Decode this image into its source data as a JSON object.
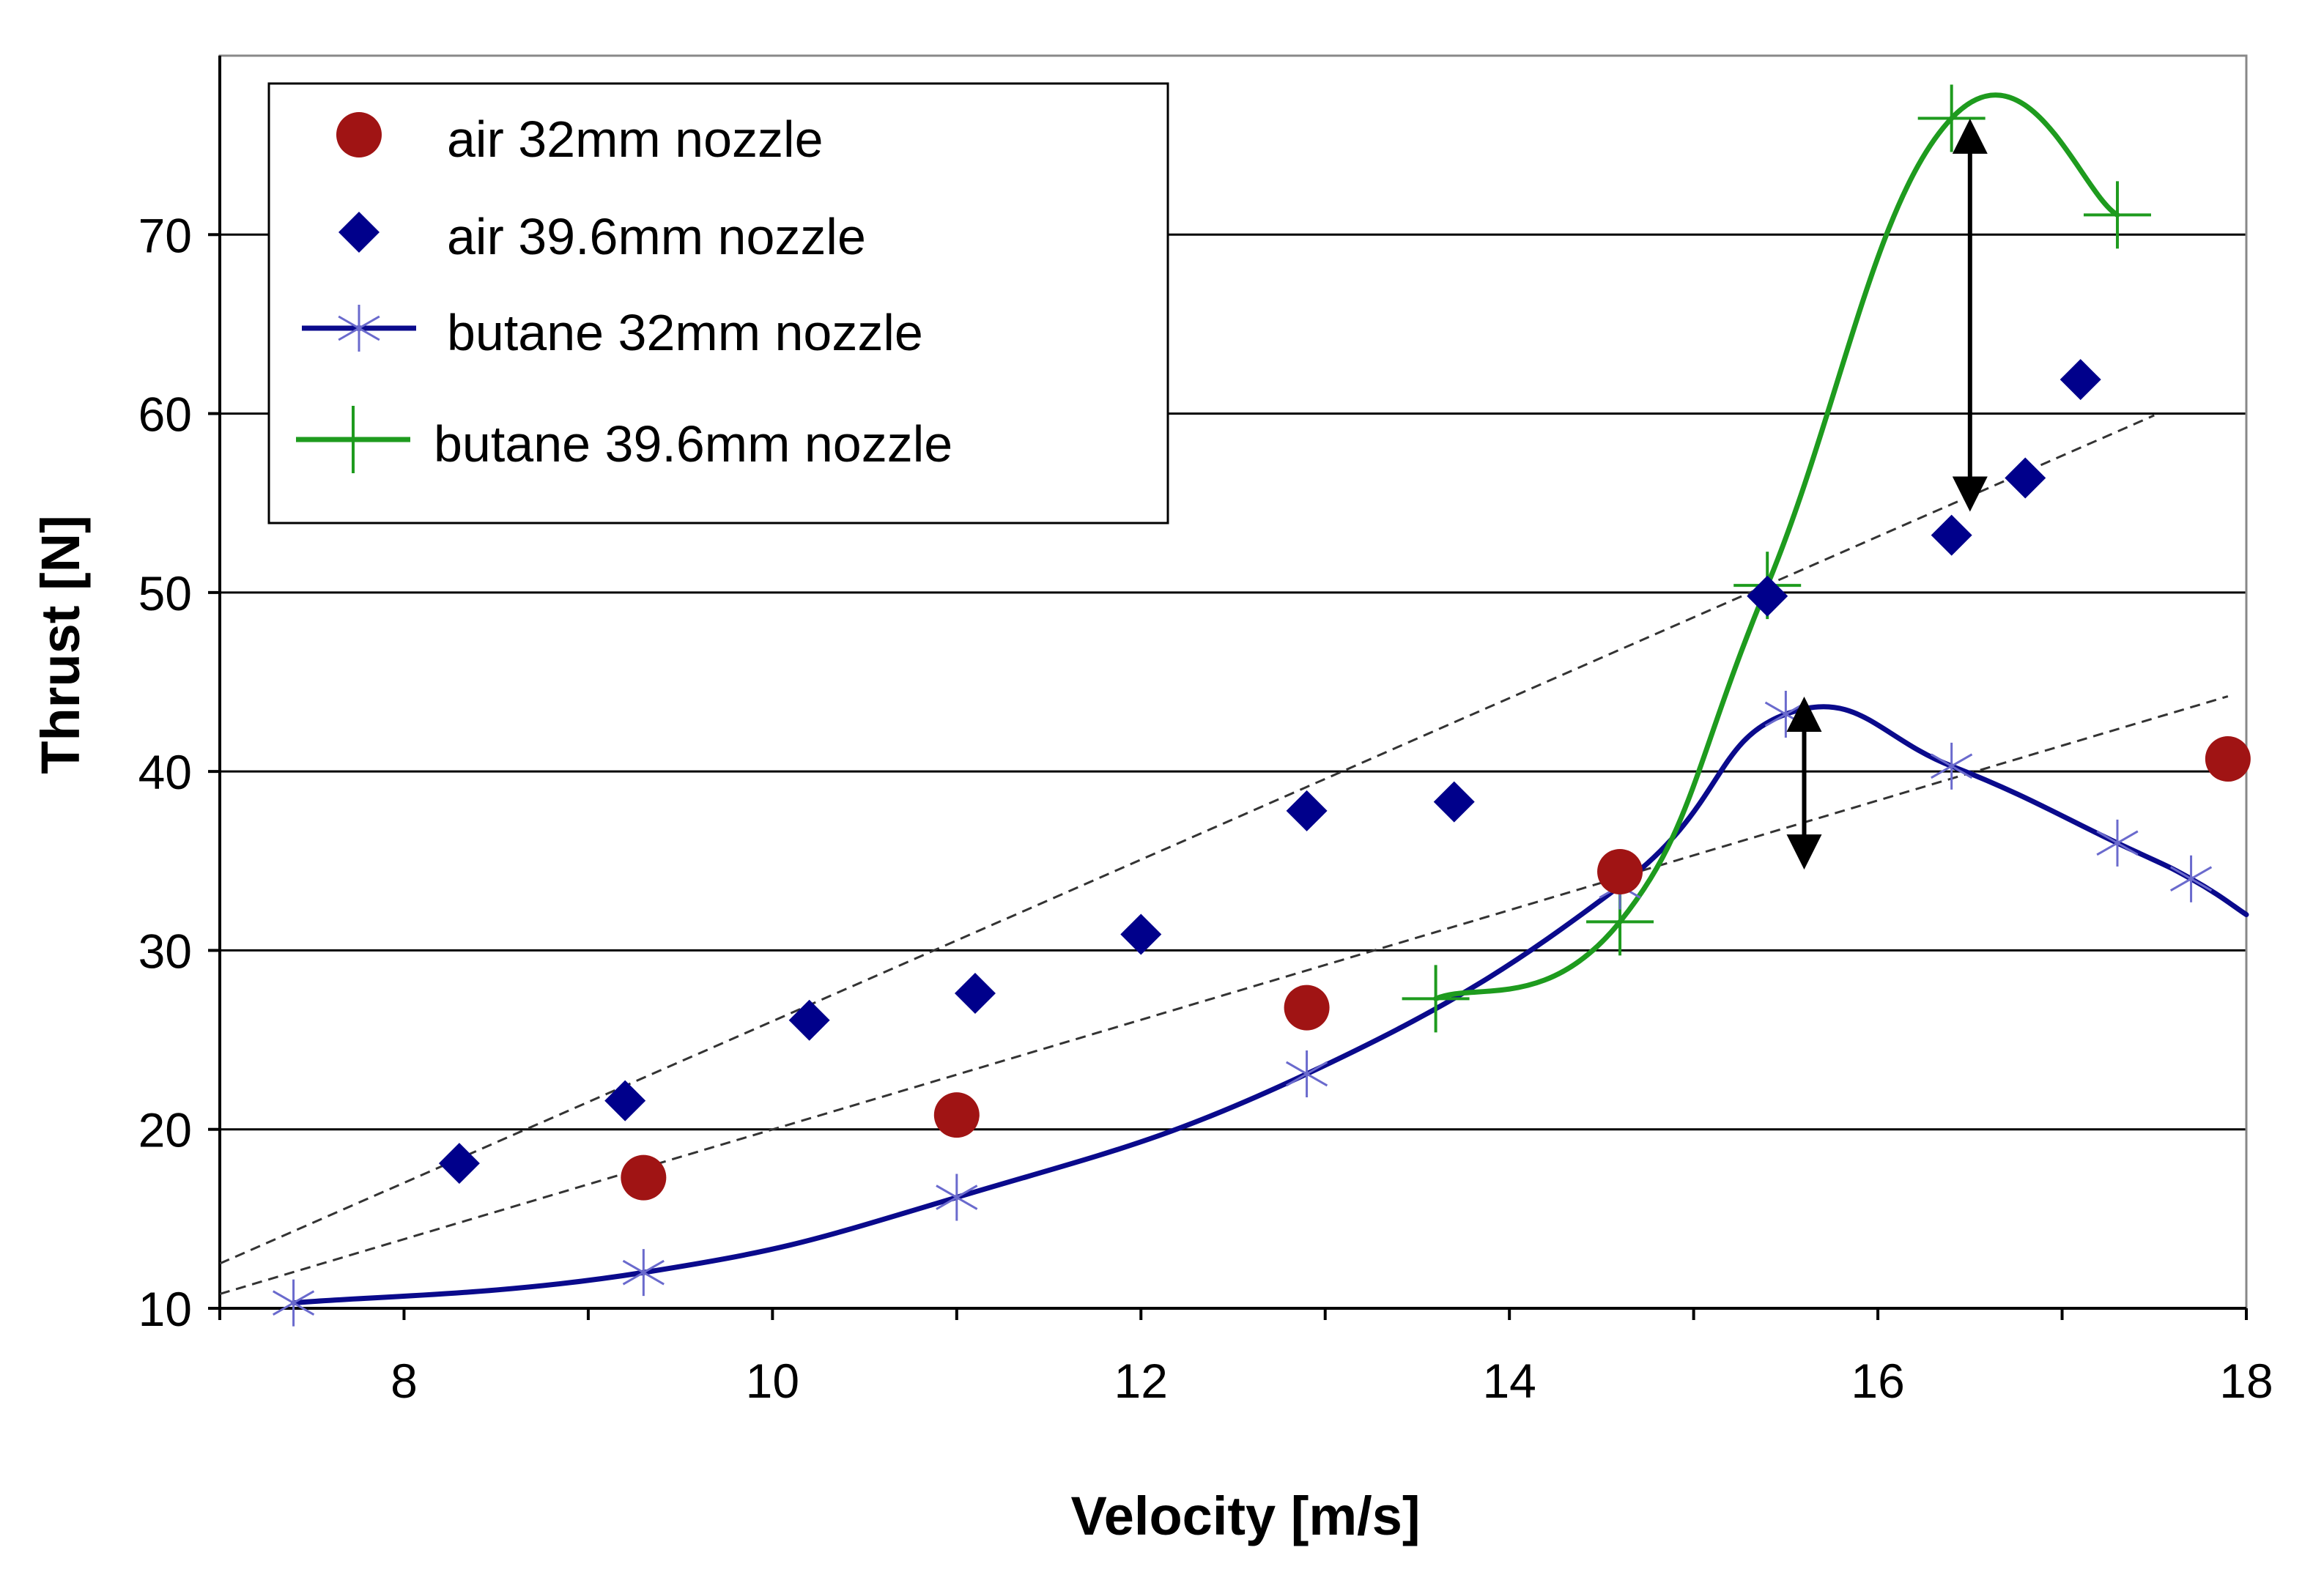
{
  "chart_data": {
    "type": "scatter",
    "title": "",
    "xlabel": "Velocity [m/s]",
    "ylabel": "Thrust [N]",
    "xlim": [
      7,
      18
    ],
    "ylim": [
      10,
      80
    ],
    "xticks": [
      8,
      10,
      12,
      14,
      16,
      18
    ],
    "yticks": [
      10,
      20,
      30,
      40,
      50,
      60,
      70
    ],
    "grid": "horizontal",
    "legend_position": "top-left",
    "series": [
      {
        "name": "air 32mm nozzle",
        "marker": "circle",
        "line": false,
        "color": "#a01414",
        "x": [
          9.3,
          11.0,
          12.9,
          14.6,
          17.9
        ],
        "y": [
          17.3,
          20.8,
          26.8,
          34.4,
          40.7
        ]
      },
      {
        "name": "air 39.6mm nozzle",
        "marker": "diamond",
        "line": false,
        "color": "#00008b",
        "x": [
          8.3,
          9.2,
          10.2,
          11.1,
          12.0,
          12.9,
          13.7,
          15.4,
          16.4,
          16.8,
          17.1
        ],
        "y": [
          18.1,
          21.6,
          26.1,
          27.6,
          30.9,
          37.8,
          38.3,
          49.8,
          53.2,
          56.4,
          61.9
        ]
      },
      {
        "name": "butane 32mm nozzle",
        "marker": "asterisk",
        "line": true,
        "color": "#0a0a8c",
        "x": [
          7.4,
          9.3,
          11.0,
          12.9,
          14.6,
          15.5,
          16.4,
          17.3,
          17.7
        ],
        "y": [
          10.3,
          12.0,
          16.2,
          23.1,
          33.6,
          43.2,
          40.3,
          36.0,
          34.0
        ]
      },
      {
        "name": "butane 39.6mm nozzle",
        "marker": "plus",
        "line": true,
        "color": "#1e9b1e",
        "x": [
          13.6,
          14.6,
          15.4,
          16.4,
          17.3
        ],
        "y": [
          27.3,
          31.6,
          50.4,
          76.5,
          71.1
        ]
      }
    ],
    "trendlines": [
      {
        "name": "air 39.6mm nozzle trend",
        "style": "dashed",
        "x": [
          7.0,
          17.5
        ],
        "y": [
          12.5,
          59.9
        ]
      },
      {
        "name": "air 32mm nozzle trend",
        "style": "dashed",
        "x": [
          7.0,
          17.9
        ],
        "y": [
          10.8,
          44.2
        ]
      }
    ],
    "annotations": [
      {
        "type": "double-arrow",
        "x": 16.5,
        "y_from": 55.5,
        "y_to": 75.5
      },
      {
        "type": "double-arrow",
        "x": 15.6,
        "y_from": 35.5,
        "y_to": 43.2
      }
    ]
  }
}
